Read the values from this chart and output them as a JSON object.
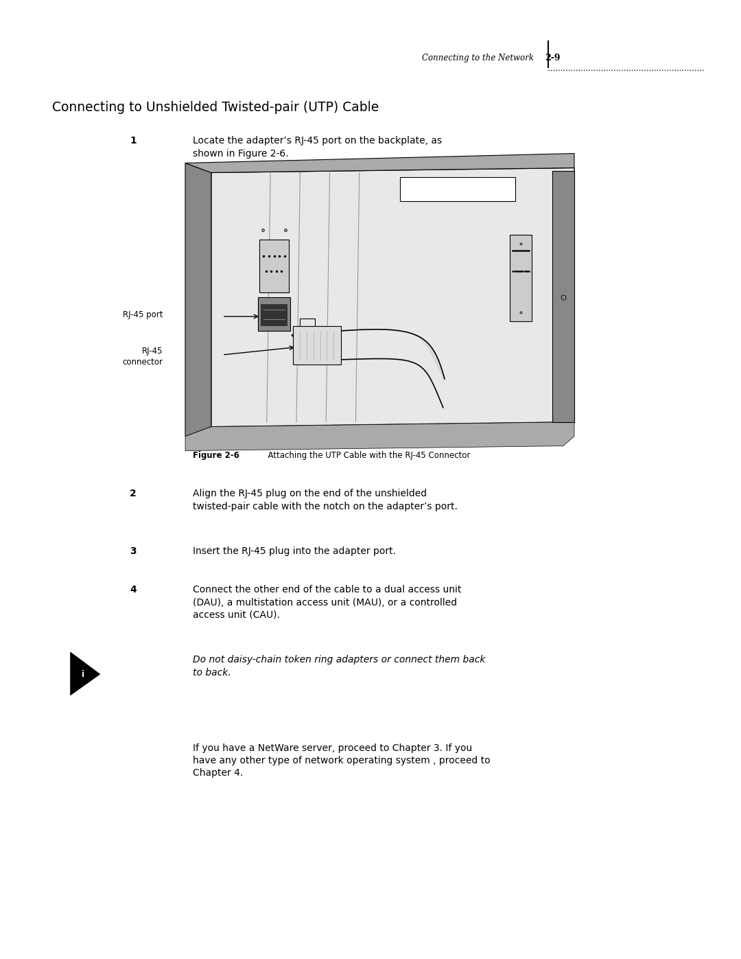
{
  "page_width": 10.8,
  "page_height": 13.97,
  "bg_color": "#ffffff",
  "header_text": "Connecting to the Network",
  "header_page": "2-9",
  "title": "Connecting to Unshielded Twisted-pair (UTP) Cable",
  "step1_num": "1",
  "step1_text": "Locate the adapter’s RJ-45 port on the backplate, as\nshown in Figure 2-6.",
  "fig_caption_bold": "Figure 2-6",
  "fig_caption_rest": "  Attaching the UTP Cable with the RJ-45 Connector",
  "step2_num": "2",
  "step2_text": "Align the RJ-45 plug on the end of the unshielded\ntwisted-pair cable with the notch on the adapter’s port.",
  "step3_num": "3",
  "step3_text": "Insert the RJ-45 plug into the adapter port.",
  "step4_num": "4",
  "step4_text": "Connect the other end of the cable to a dual access unit\n(DAU), a multistation access unit (MAU), or a controlled\naccess unit (CAU).",
  "note_italic": "Do not daisy-chain token ring adapters or connect them back\nto back.",
  "closing_text": "If you have a NetWare server, proceed to Chapter 3. If you\nhave any other type of network operating system , proceed to\nChapter 4.",
  "label_rj45_port": "RJ-45 port",
  "label_rj45_connector": "RJ-45\nconnector"
}
